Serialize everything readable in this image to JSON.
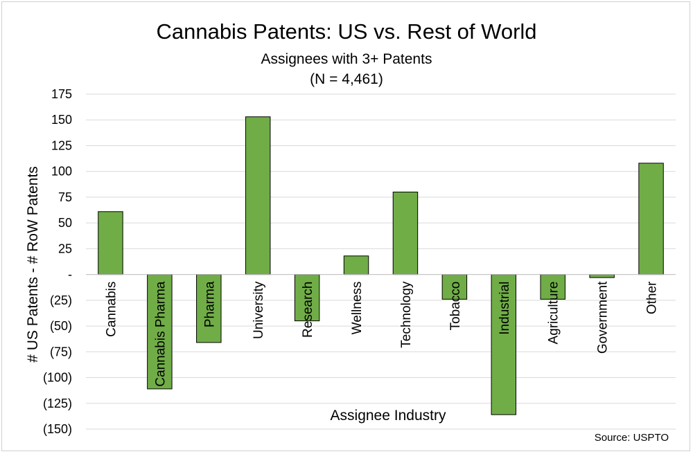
{
  "chart_data": {
    "type": "bar",
    "title": "Cannabis Patents: US vs. Rest of World",
    "subtitle": "Assignees with 3+ Patents",
    "note": "(N = 4,461)",
    "xlabel": "Assignee Industry",
    "ylabel": "# US Patents  - # RoW Patents",
    "source": "Source: USPTO",
    "categories": [
      "Cannabis",
      "Cannabis Pharma",
      "Pharma",
      "University",
      "Research",
      "Wellness",
      "Technology",
      "Tobacco",
      "Industrial",
      "Agriculture",
      "Government",
      "Other"
    ],
    "values": [
      61,
      -111,
      -66,
      153,
      -45,
      18,
      80,
      -24,
      -136,
      -24,
      -3,
      108
    ],
    "ylim": [
      -150,
      175
    ],
    "yticks": [
      175,
      150,
      125,
      100,
      75,
      50,
      25,
      0,
      -25,
      -50,
      -75,
      -100,
      -125,
      -150
    ],
    "ytick_labels": [
      "175",
      "150",
      "125",
      "100",
      "75",
      "50",
      "25",
      "-",
      "(25)",
      "(50)",
      "(75)",
      "(100)",
      "(125)",
      "(150)"
    ],
    "grid": true,
    "bar_color": "#70ad47",
    "bar_edge_color": "#000000",
    "grid_color": "#d9d9d9"
  }
}
